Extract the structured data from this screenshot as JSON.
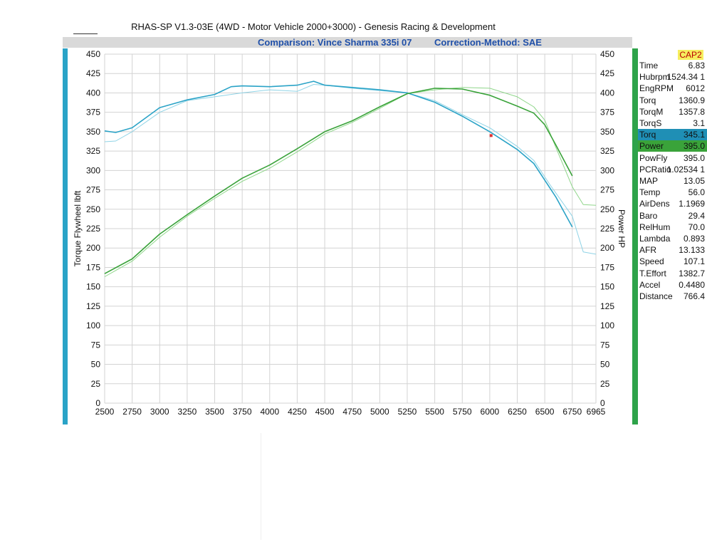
{
  "header": {
    "title": "RHAS-SP V1.3-03E  (4WD - Motor Vehicle 2000+3000) - Genesis Racing & Development",
    "comparison": "Comparison: Vince Sharma 335i 07",
    "correction": "Correction-Method: SAE"
  },
  "panel": {
    "badge": "CAP2",
    "rows": [
      {
        "label": "Time",
        "value": "6.83"
      },
      {
        "label": "Hubrpm",
        "value": "1524.34 1"
      },
      {
        "label": "EngRPM",
        "value": "6012"
      },
      {
        "label": "Torq",
        "value": "1360.9"
      },
      {
        "label": "TorqM",
        "value": "1357.8"
      },
      {
        "label": "TorqS",
        "value": "3.1"
      },
      {
        "label": "Torq",
        "value": "345.1"
      },
      {
        "label": "Power",
        "value": "395.0"
      },
      {
        "label": "PowFly",
        "value": "395.0"
      },
      {
        "label": "PCRatio",
        "value": "1.02534 1"
      },
      {
        "label": "MAP",
        "value": "13.05"
      },
      {
        "label": "Temp",
        "value": "56.0"
      },
      {
        "label": "AirDens",
        "value": "1.1969"
      },
      {
        "label": "Baro",
        "value": "29.4"
      },
      {
        "label": "RelHum",
        "value": "70.0"
      },
      {
        "label": "Lambda",
        "value": "0.893"
      },
      {
        "label": "AFR",
        "value": "13.133"
      },
      {
        "label": "Speed",
        "value": "107.1"
      },
      {
        "label": "T.Effort",
        "value": "1382.7"
      },
      {
        "label": "Accel",
        "value": "0.4480"
      },
      {
        "label": "Distance",
        "value": "766.4"
      }
    ]
  },
  "chart_data": {
    "type": "line",
    "xlabel": "",
    "ylabel": "Torque Flywheel lbft",
    "ylabel_right": "Power HP",
    "xlim": [
      2500,
      6965
    ],
    "ylim": [
      0,
      450
    ],
    "x_ticks": [
      "2500",
      "2750",
      "3000",
      "3250",
      "3500",
      "3750",
      "4000",
      "4250",
      "4500",
      "4750",
      "5000",
      "5250",
      "5500",
      "5750",
      "6000",
      "6250",
      "6500",
      "6750",
      "6965"
    ],
    "y_ticks": [
      "0",
      "25",
      "50",
      "75",
      "100",
      "125",
      "150",
      "175",
      "200",
      "225",
      "250",
      "275",
      "300",
      "325",
      "350",
      "375",
      "400",
      "425",
      "450"
    ],
    "grid": true,
    "cursor": {
      "x": 6012,
      "y": 345
    },
    "colors": {
      "torque": "#2aa3c7",
      "torque_comp": "#8fd3e6",
      "power": "#3aa33a",
      "power_comp": "#8fd68a",
      "cursor": "#e03030"
    },
    "series": [
      {
        "role": "torque",
        "x": [
          2500,
          2600,
          2750,
          3000,
          3250,
          3500,
          3650,
          3750,
          4000,
          4250,
          4400,
          4500,
          4750,
          5000,
          5250,
          5500,
          5750,
          6000,
          6250,
          6400,
          6600,
          6750
        ],
        "y": [
          351,
          349,
          355,
          381,
          391,
          398,
          408,
          409,
          408,
          410,
          415,
          410,
          407,
          404,
          400,
          388,
          370,
          350,
          327,
          309,
          266,
          227
        ]
      },
      {
        "role": "torque_comp",
        "x": [
          2500,
          2600,
          2750,
          3000,
          3250,
          3500,
          3750,
          4000,
          4250,
          4400,
          4500,
          4750,
          5000,
          5250,
          5500,
          5750,
          6000,
          6250,
          6400,
          6550,
          6750,
          6850,
          6965
        ],
        "y": [
          337,
          338,
          350,
          375,
          390,
          395,
          400,
          404,
          402,
          411,
          410,
          406,
          403,
          400,
          390,
          372,
          355,
          331,
          313,
          281,
          241,
          195,
          192
        ]
      },
      {
        "role": "power",
        "x": [
          2500,
          2750,
          3000,
          3250,
          3500,
          3750,
          4000,
          4250,
          4500,
          4750,
          5000,
          5250,
          5500,
          5750,
          6000,
          6250,
          6400,
          6500,
          6600,
          6750
        ],
        "y": [
          167,
          186,
          218,
          243,
          267,
          290,
          307,
          328,
          350,
          364,
          382,
          399,
          406,
          405,
          397,
          383,
          374,
          359,
          333,
          293
        ]
      },
      {
        "role": "power_comp",
        "x": [
          2500,
          2750,
          3000,
          3250,
          3500,
          3750,
          4000,
          4250,
          4500,
          4750,
          5000,
          5250,
          5500,
          5750,
          6000,
          6250,
          6400,
          6500,
          6600,
          6750,
          6850,
          6965
        ],
        "y": [
          163,
          183,
          214,
          241,
          264,
          286,
          303,
          324,
          347,
          362,
          380,
          399,
          404,
          407,
          406,
          395,
          382,
          365,
          330,
          279,
          256,
          255
        ]
      }
    ]
  }
}
